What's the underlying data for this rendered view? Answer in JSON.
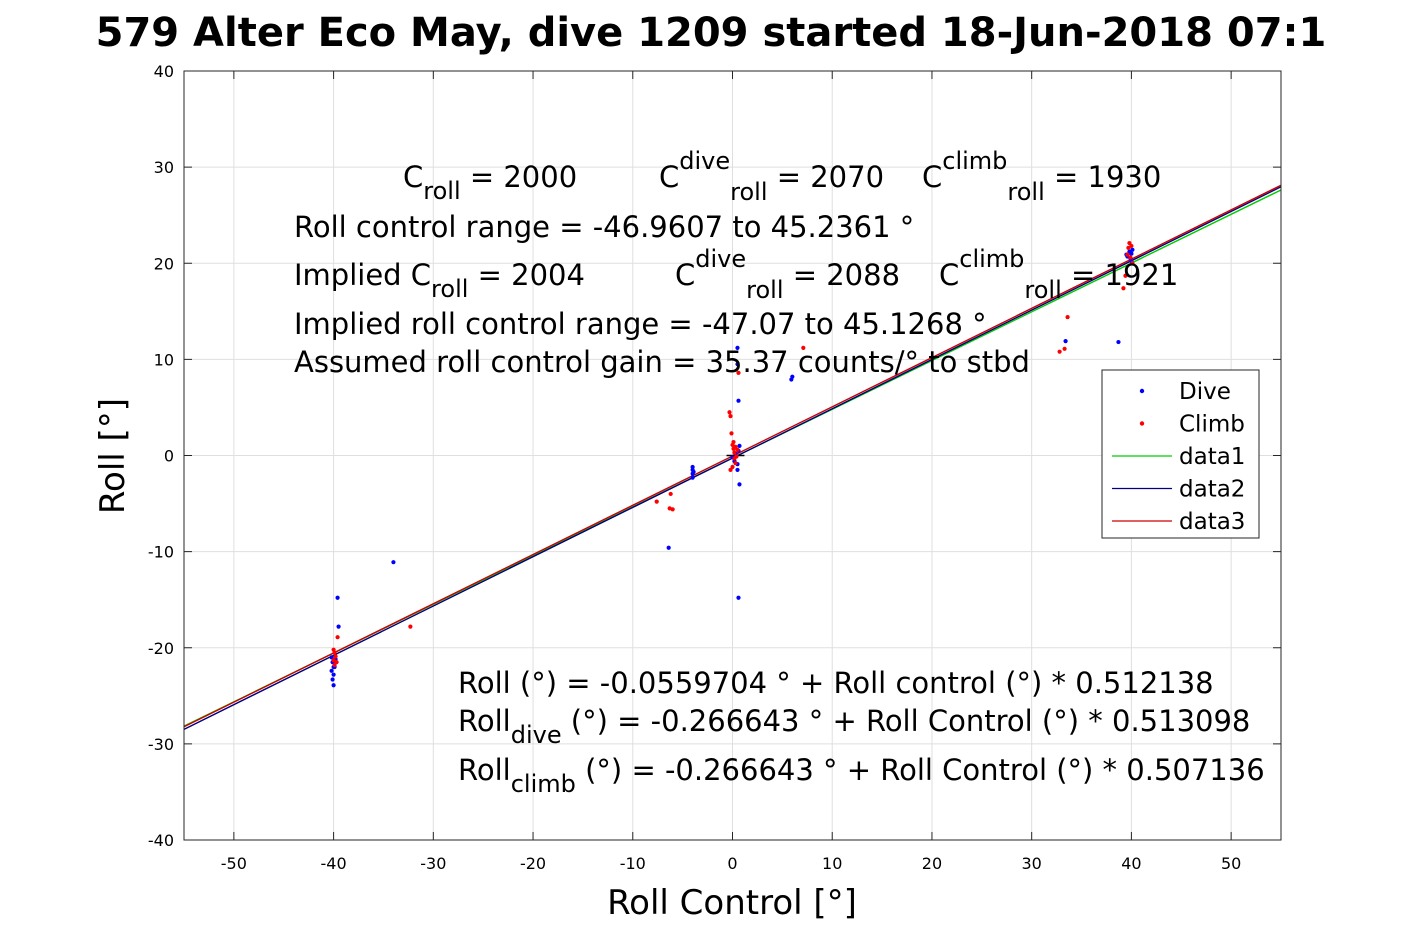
{
  "chart_data": {
    "type": "scatter",
    "title": "579 Alter Eco May, dive 1209 started 18-Jun-2018 07:1",
    "xlabel": "Roll Control [°]",
    "ylabel": "Roll [°]",
    "xlim": [
      -55,
      55
    ],
    "ylim": [
      -40,
      40
    ],
    "xticks": [
      -50,
      -40,
      -30,
      -20,
      -10,
      0,
      10,
      20,
      30,
      40,
      50
    ],
    "yticks": [
      -40,
      -30,
      -20,
      -10,
      0,
      10,
      20,
      30,
      40
    ],
    "grid": true,
    "legend_placement": "right",
    "legend": [
      "Dive",
      "Climb",
      "data1",
      "data2",
      "data3"
    ],
    "series": [
      {
        "name": "Dive",
        "kind": "points",
        "color": "#0000ff",
        "points": [
          [
            -40.2,
            -21.0
          ],
          [
            -40.1,
            -21.5
          ],
          [
            -40.0,
            -22.0
          ],
          [
            -40.2,
            -22.4
          ],
          [
            -40.0,
            -22.8
          ],
          [
            -40.1,
            -23.3
          ],
          [
            -40.0,
            -23.9
          ],
          [
            -39.8,
            -21.2
          ],
          [
            -39.9,
            -22.0
          ],
          [
            -39.6,
            -14.8
          ],
          [
            -39.5,
            -17.8
          ],
          [
            -34.0,
            -11.1
          ],
          [
            -4.0,
            -1.2
          ],
          [
            -4.0,
            -1.5
          ],
          [
            -4.0,
            -1.9
          ],
          [
            -4.0,
            -2.3
          ],
          [
            -3.9,
            -1.7
          ],
          [
            -6.4,
            -9.6
          ],
          [
            0.0,
            -0.2
          ],
          [
            0.2,
            -0.6
          ],
          [
            0.3,
            0.2
          ],
          [
            0.5,
            -0.9
          ],
          [
            0.6,
            0.5
          ],
          [
            0.5,
            -1.5
          ],
          [
            0.7,
            -3.0
          ],
          [
            0.6,
            -14.8
          ],
          [
            0.6,
            5.7
          ],
          [
            0.5,
            9.5
          ],
          [
            0.5,
            11.2
          ],
          [
            0.7,
            1.0
          ],
          [
            5.9,
            7.9
          ],
          [
            6.0,
            8.2
          ],
          [
            33.4,
            11.9
          ],
          [
            38.7,
            11.8
          ],
          [
            39.6,
            20.7
          ],
          [
            39.8,
            21.2
          ],
          [
            40.0,
            20.2
          ],
          [
            40.0,
            21.0
          ],
          [
            39.9,
            20.5
          ],
          [
            40.1,
            21.4
          ],
          [
            39.5,
            20.9
          ]
        ]
      },
      {
        "name": "Climb",
        "kind": "points",
        "color": "#ff0000",
        "points": [
          [
            -40.0,
            -20.2
          ],
          [
            -39.9,
            -20.5
          ],
          [
            -39.8,
            -20.9
          ],
          [
            -40.0,
            -21.3
          ],
          [
            -39.7,
            -21.5
          ],
          [
            -39.9,
            -21.8
          ],
          [
            -39.6,
            -18.9
          ],
          [
            -32.3,
            -17.8
          ],
          [
            -7.6,
            -4.8
          ],
          [
            -6.2,
            -4.0
          ],
          [
            -6.3,
            -5.5
          ],
          [
            -6.0,
            -5.6
          ],
          [
            -0.3,
            4.5
          ],
          [
            -0.2,
            4.1
          ],
          [
            -0.1,
            2.3
          ],
          [
            0.0,
            1.1
          ],
          [
            0.1,
            0.7
          ],
          [
            0.2,
            0.3
          ],
          [
            0.2,
            -0.3
          ],
          [
            0.3,
            -0.8
          ],
          [
            0.0,
            -1.2
          ],
          [
            -0.2,
            -1.5
          ],
          [
            0.3,
            0.9
          ],
          [
            0.1,
            1.4
          ],
          [
            0.5,
            0.6
          ],
          [
            0.4,
            -0.1
          ],
          [
            0.6,
            8.6
          ],
          [
            7.1,
            11.2
          ],
          [
            32.8,
            10.8
          ],
          [
            33.3,
            11.1
          ],
          [
            33.6,
            14.4
          ],
          [
            39.2,
            17.4
          ],
          [
            39.4,
            18.7
          ],
          [
            39.6,
            20.9
          ],
          [
            39.7,
            21.6
          ],
          [
            39.8,
            22.1
          ],
          [
            40.0,
            21.8
          ],
          [
            39.9,
            20.6
          ],
          [
            40.1,
            20.0
          ]
        ]
      },
      {
        "name": "data1",
        "kind": "line",
        "color": "#00cc00",
        "intercept": -0.266643,
        "slope": 0.507136
      },
      {
        "name": "data2",
        "kind": "line",
        "color": "#000080",
        "intercept": -0.266643,
        "slope": 0.513098
      },
      {
        "name": "data3",
        "kind": "line",
        "color": "#cc0000",
        "intercept": -0.0559704,
        "slope": 0.512138
      }
    ],
    "annotations": {
      "c_roll": {
        "main": "C",
        "sub": "roll",
        "rest": " = 2000"
      },
      "c_roll_dive": {
        "main": "C",
        "sub": "roll",
        "sup": "dive",
        "rest": " = 2070"
      },
      "c_roll_climb": {
        "main": "C",
        "sub": "roll",
        "sup": "climb",
        "rest": " = 1930"
      },
      "roll_control_range": "Roll control range = -46.9607 to 45.2361 °",
      "implied_c_roll": {
        "main": "Implied C",
        "sub": "roll",
        "rest": " = 2004"
      },
      "implied_c_roll_dive": {
        "main": "C",
        "sub": "roll",
        "sup": "dive",
        "rest": " = 2088"
      },
      "implied_c_roll_climb": {
        "main": "C",
        "sub": "roll",
        "sup": "climb",
        "rest": " = 1921"
      },
      "implied_range": "Implied roll control range = -47.07 to 45.1268 °",
      "gain": "Assumed roll control gain = 35.37 counts/° to stbd",
      "fit_all": "Roll (°) = -0.0559704 ° + Roll control (°) * 0.512138",
      "fit_dive": {
        "main": "Roll",
        "sub": "dive",
        "rest": " (°) = -0.266643 ° + Roll Control (°) * 0.513098"
      },
      "fit_climb": {
        "main": "Roll",
        "sub": "climb",
        "rest": " (°) = -0.266643 ° + Roll Control (°) * 0.507136"
      }
    }
  }
}
